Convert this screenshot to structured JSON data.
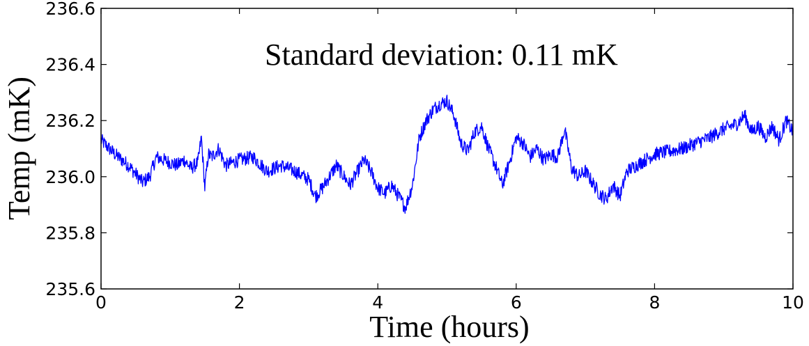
{
  "chart_data": {
    "type": "line",
    "title": "",
    "xlabel": "Time (hours)",
    "ylabel": "Temp (mK)",
    "xlim": [
      0,
      10
    ],
    "ylim": [
      235.6,
      236.6
    ],
    "x_ticks": [
      0,
      2,
      4,
      6,
      8,
      10
    ],
    "y_ticks": [
      235.6,
      235.8,
      236.0,
      236.2,
      236.4,
      236.6
    ],
    "x_tick_labels": [
      "0",
      "2",
      "4",
      "6",
      "8",
      "10"
    ],
    "y_tick_labels": [
      "235.6",
      "235.8",
      "236.0",
      "236.2",
      "236.4",
      "236.6"
    ],
    "annotation": "Standard deviation: 0.11 mK",
    "grid": false,
    "legend": "none",
    "series": [
      {
        "color": "#0000ff",
        "x": [
          0.0,
          0.2,
          0.4,
          0.6,
          0.7,
          0.8,
          0.9,
          1.0,
          1.1,
          1.2,
          1.3,
          1.4,
          1.45,
          1.5,
          1.55,
          1.6,
          1.7,
          1.8,
          2.0,
          2.2,
          2.4,
          2.6,
          2.8,
          3.0,
          3.1,
          3.2,
          3.4,
          3.6,
          3.8,
          3.9,
          4.0,
          4.1,
          4.2,
          4.3,
          4.4,
          4.5,
          4.6,
          4.7,
          4.8,
          4.9,
          5.0,
          5.1,
          5.2,
          5.3,
          5.4,
          5.5,
          5.6,
          5.7,
          5.8,
          5.9,
          6.0,
          6.1,
          6.2,
          6.3,
          6.4,
          6.5,
          6.6,
          6.7,
          6.8,
          6.9,
          7.0,
          7.1,
          7.2,
          7.3,
          7.4,
          7.5,
          7.6,
          7.8,
          8.0,
          8.2,
          8.4,
          8.6,
          8.8,
          9.0,
          9.2,
          9.3,
          9.4,
          9.5,
          9.6,
          9.7,
          9.8,
          9.9,
          10.0
        ],
        "y": [
          236.13,
          236.08,
          236.04,
          235.98,
          236.0,
          236.07,
          236.06,
          236.05,
          236.04,
          236.06,
          236.03,
          236.05,
          236.14,
          235.96,
          236.08,
          236.07,
          236.1,
          236.04,
          236.06,
          236.07,
          236.02,
          236.04,
          236.02,
          235.99,
          235.93,
          235.96,
          236.04,
          235.97,
          236.06,
          236.02,
          235.96,
          235.94,
          235.97,
          235.93,
          235.89,
          235.97,
          236.14,
          236.2,
          236.24,
          236.26,
          236.27,
          236.22,
          236.12,
          236.09,
          236.16,
          236.18,
          236.1,
          236.04,
          235.97,
          236.05,
          236.14,
          236.12,
          236.07,
          236.1,
          236.06,
          236.08,
          236.07,
          236.17,
          236.03,
          236.0,
          236.02,
          235.98,
          235.94,
          235.92,
          235.97,
          235.93,
          236.02,
          236.05,
          236.08,
          236.09,
          236.1,
          236.12,
          236.14,
          236.17,
          236.19,
          236.22,
          236.16,
          236.18,
          236.14,
          236.18,
          236.13,
          236.2,
          236.16
        ]
      }
    ]
  }
}
